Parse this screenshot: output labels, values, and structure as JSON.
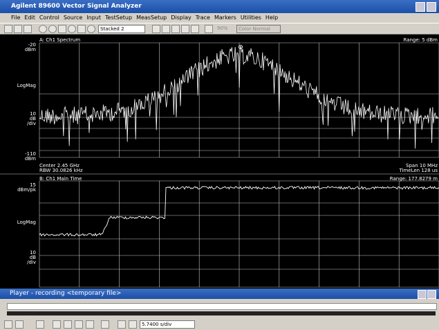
{
  "window": {
    "title": "Agilent 89600 Vector Signal Analyzer"
  },
  "menu": [
    "File",
    "Edit",
    "Control",
    "Source",
    "Input",
    "TestSetup",
    "MeasSetup",
    "Display",
    "Trace",
    "Markers",
    "Utilities",
    "Help"
  ],
  "toolbar": {
    "layout": "Stacked 2",
    "zoom": "90%",
    "color": "Color Normal"
  },
  "trace_a": {
    "title": "A: Ch1 Spectrum",
    "range": "Range: 5 dBm",
    "top": "-20",
    "top_unit": "dBm",
    "scale": "LogMag",
    "div": "10",
    "div_unit": "dB",
    "per_div": "/div",
    "bottom": "-110",
    "bottom_unit": "dBm",
    "center": "Center 2.45 GHz",
    "rbw": "RBW 30.0826 kHz",
    "span": "Span 10 MHz",
    "timelen": "TimeLen 128 us"
  },
  "trace_b": {
    "title": "B: Ch1 Main Time",
    "range": "Range: 177.8279 m",
    "top": "15",
    "top_unit": "dBm/pk",
    "scale": "LogMag",
    "div": "10",
    "div_unit": "dB",
    "per_div": "/div"
  },
  "player": {
    "title": "Player - recording <temporary file>",
    "status": "5.7400 s/div"
  }
}
